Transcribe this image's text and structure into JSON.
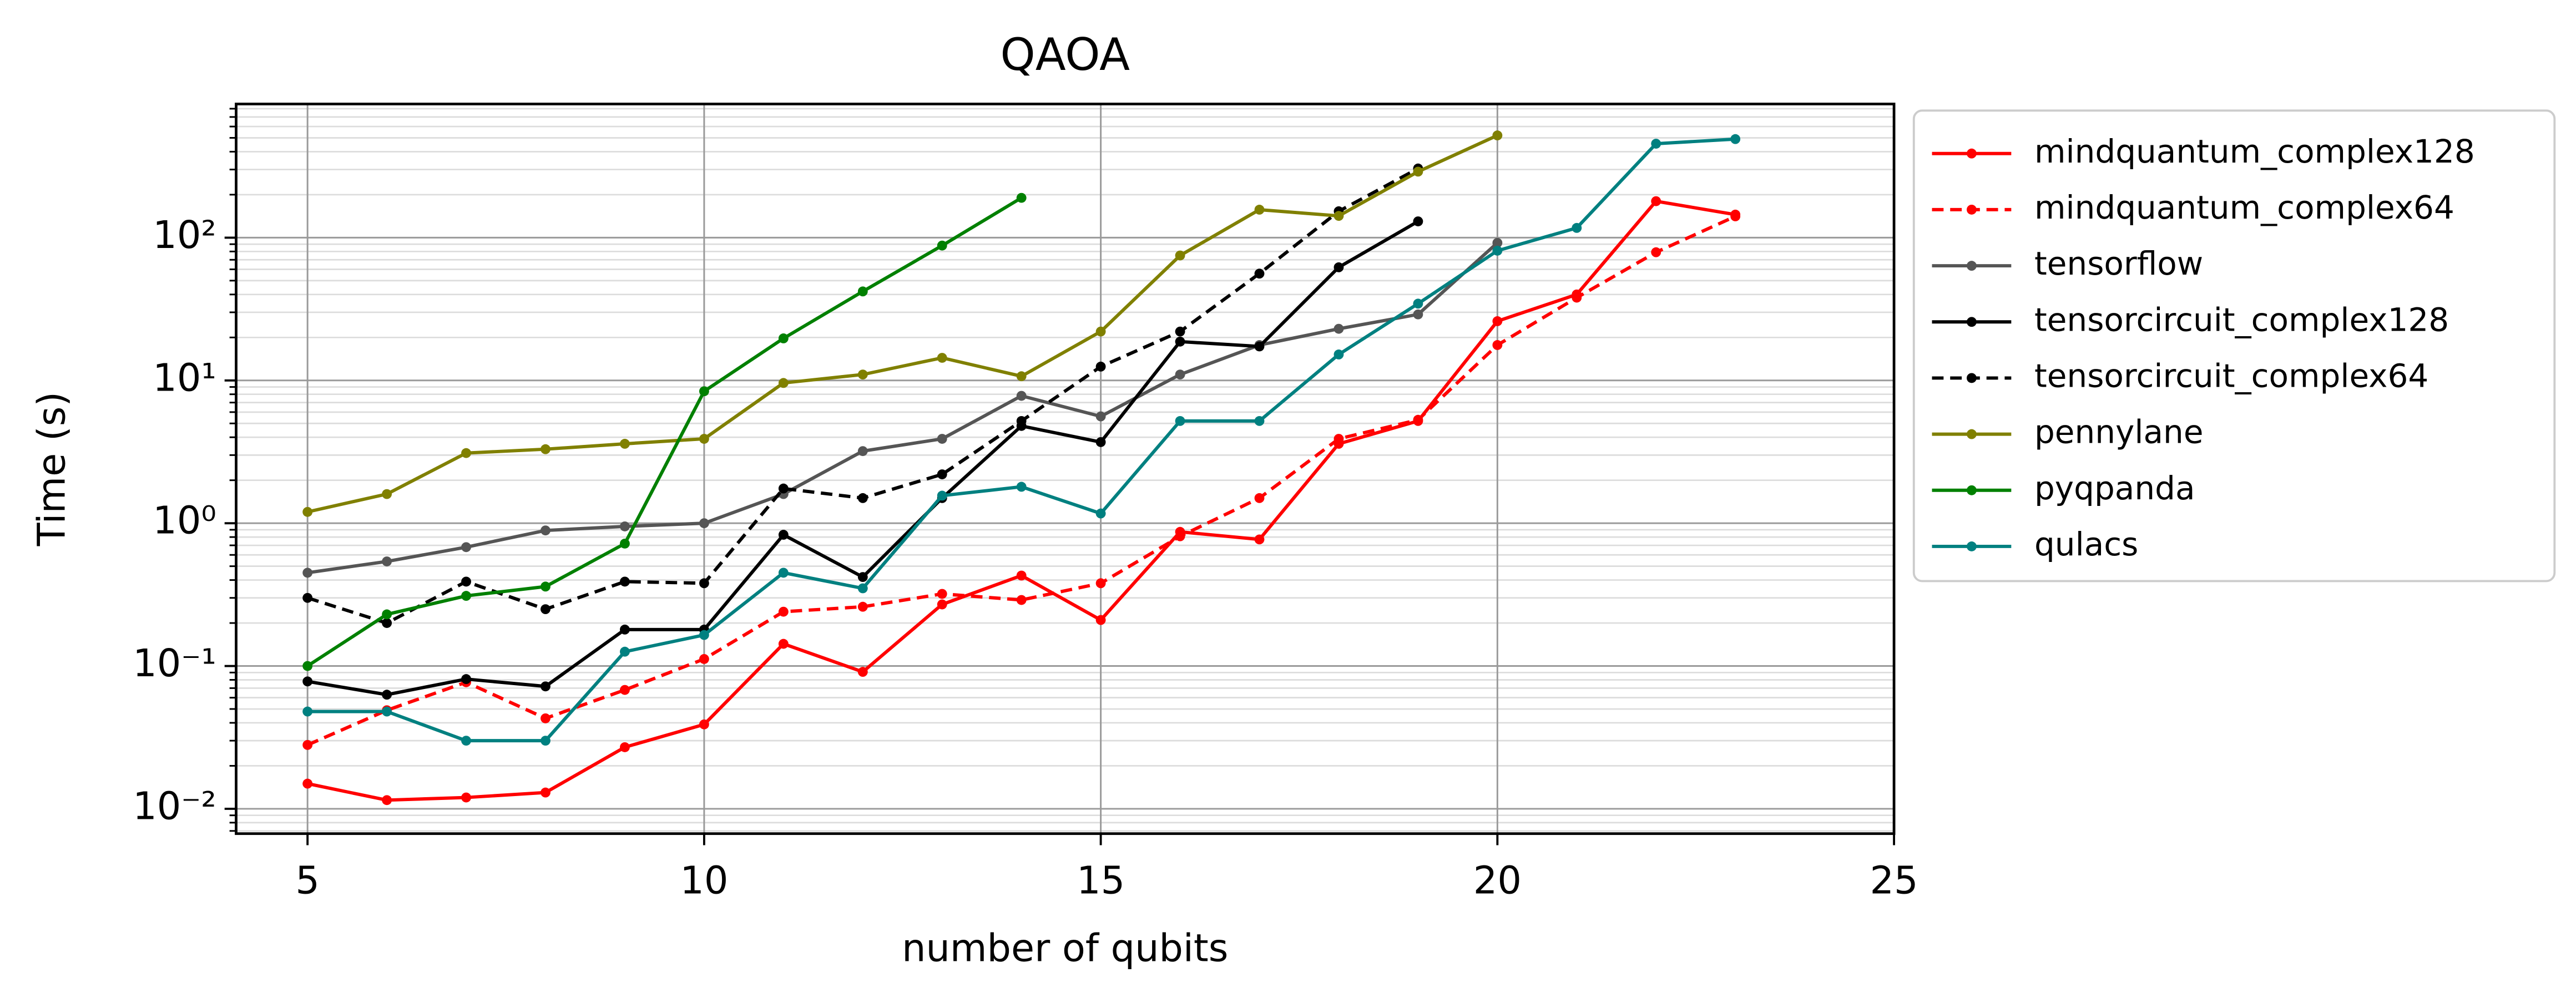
{
  "chart_data": {
    "type": "line",
    "title": "QAOA",
    "xlabel": "number of qubits",
    "ylabel": "Time (s)",
    "x": [
      5,
      6,
      7,
      8,
      9,
      10,
      11,
      12,
      13,
      14,
      15,
      16,
      17,
      18,
      19,
      20,
      21,
      22,
      23
    ],
    "xlim": [
      4.1,
      25
    ],
    "xticks": [
      5,
      10,
      15,
      20,
      25
    ],
    "ylim": [
      0.0067,
      863
    ],
    "log_y": true,
    "grid": true,
    "minor_grid": true,
    "legend": "outside right",
    "yticks": [
      {
        "value": 0.01,
        "label": "10⁻²"
      },
      {
        "value": 0.1,
        "label": "10⁻¹"
      },
      {
        "value": 1,
        "label": "10⁰"
      },
      {
        "value": 10,
        "label": "10¹"
      },
      {
        "value": 100,
        "label": "10²"
      }
    ],
    "series": [
      {
        "name": "mindquantum_complex128",
        "color": "#ff0000",
        "linestyle": "solid",
        "values": [
          0.015,
          0.0115,
          0.012,
          0.013,
          0.027,
          0.039,
          0.143,
          0.091,
          0.27,
          0.43,
          0.21,
          0.87,
          0.77,
          3.6,
          5.2,
          26,
          40,
          180,
          145
        ]
      },
      {
        "name": "mindquantum_complex64",
        "color": "#ff0000",
        "linestyle": "dashed",
        "values": [
          0.028,
          0.049,
          0.077,
          0.043,
          0.068,
          0.112,
          0.24,
          0.26,
          0.32,
          0.29,
          0.38,
          0.81,
          1.5,
          3.9,
          5.3,
          17.7,
          38,
          79,
          141
        ]
      },
      {
        "name": "tensorflow",
        "color": "#555555",
        "linestyle": "solid",
        "values": [
          0.45,
          0.54,
          0.68,
          0.89,
          0.95,
          1.0,
          1.6,
          3.2,
          3.9,
          7.8,
          5.6,
          11,
          17.7,
          23,
          29,
          92,
          null,
          null,
          null
        ]
      },
      {
        "name": "tensorcircuit_complex128",
        "color": "#000000",
        "linestyle": "solid",
        "values": [
          0.078,
          0.063,
          0.081,
          0.072,
          0.18,
          0.18,
          0.83,
          0.42,
          1.5,
          4.8,
          3.7,
          18.7,
          17.3,
          62,
          130,
          null,
          null,
          null,
          null
        ]
      },
      {
        "name": "tensorcircuit_complex64",
        "color": "#000000",
        "linestyle": "dashed",
        "values": [
          0.3,
          0.2,
          0.39,
          0.25,
          0.39,
          0.38,
          1.75,
          1.5,
          2.2,
          5.2,
          12.5,
          22,
          56,
          153,
          305,
          null,
          null,
          null,
          null
        ]
      },
      {
        "name": "pennylane",
        "color": "#808000",
        "linestyle": "solid",
        "values": [
          1.2,
          1.6,
          3.1,
          3.3,
          3.6,
          3.9,
          9.6,
          11,
          14.4,
          10.7,
          22,
          75,
          157,
          142,
          290,
          520,
          null,
          null,
          null
        ]
      },
      {
        "name": "pyqpanda",
        "color": "#008000",
        "linestyle": "solid",
        "values": [
          0.1,
          0.23,
          0.31,
          0.36,
          0.72,
          8.4,
          19.7,
          42,
          88,
          190,
          null,
          null,
          null,
          null,
          null,
          null,
          null,
          null,
          null
        ]
      },
      {
        "name": "qulacs",
        "color": "#008080",
        "linestyle": "solid",
        "values": [
          0.048,
          0.048,
          0.03,
          0.03,
          0.126,
          0.165,
          0.45,
          0.35,
          1.56,
          1.8,
          1.17,
          5.2,
          5.2,
          15.2,
          34.5,
          81,
          117,
          455,
          490
        ]
      }
    ]
  }
}
